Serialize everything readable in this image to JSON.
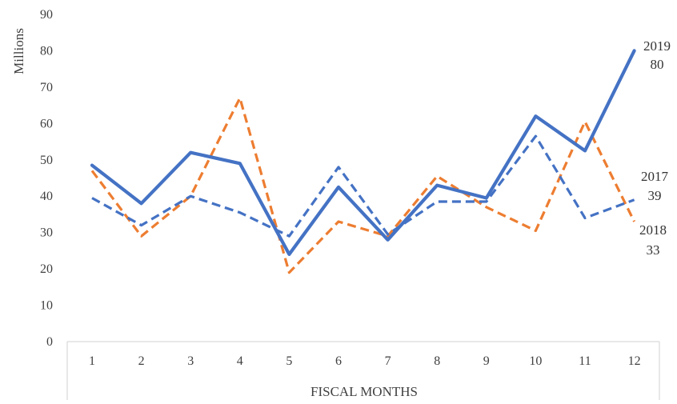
{
  "chart_data": {
    "type": "line",
    "ylabel": "Millions",
    "xlabel": "FISCAL MONTHS",
    "ylim": [
      0,
      90
    ],
    "y_ticks": [
      0,
      10,
      20,
      30,
      40,
      50,
      60,
      70,
      80,
      90
    ],
    "categories": [
      "1",
      "2",
      "3",
      "4",
      "5",
      "6",
      "7",
      "8",
      "9",
      "10",
      "11",
      "12"
    ],
    "grid": false,
    "legend": "none (series labeled at line ends)",
    "series": [
      {
        "name": "2017",
        "values": [
          39.5,
          32,
          40,
          35.5,
          29,
          48,
          29.5,
          38.5,
          38.5,
          56.5,
          34,
          39
        ],
        "end_label_value": "39",
        "color": "#4472C4",
        "style": "dashed"
      },
      {
        "name": "2018",
        "values": [
          47,
          29,
          40,
          67,
          19,
          33,
          29,
          45.5,
          37,
          30.5,
          60.5,
          33
        ],
        "end_label_value": "33",
        "color": "#ED7D31",
        "style": "dashed"
      },
      {
        "name": "2019",
        "values": [
          48.5,
          38,
          52,
          49,
          24,
          42.5,
          28,
          43,
          39.5,
          62,
          52.5,
          80
        ],
        "end_label_value": "80",
        "color": "#4472C4",
        "style": "solid"
      }
    ]
  }
}
